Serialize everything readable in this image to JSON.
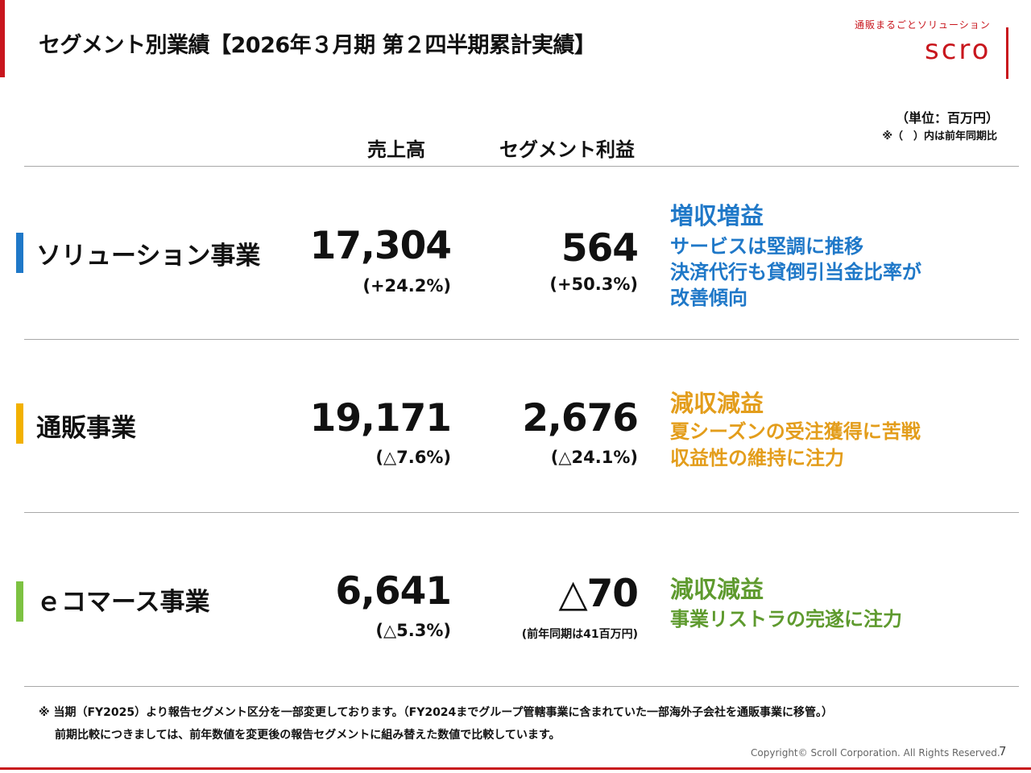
{
  "header": {
    "title": "セグメント別業績【2026年３月期 第２四半期累計実績】",
    "brand_tagline": "通販まるごとソリューション",
    "brand_logo": "scro"
  },
  "unit": "（単位：百万円）",
  "note_prev": "※（　）内は前年同期比",
  "columns": {
    "sales": "売上高",
    "profit": "セグメント利益"
  },
  "segments": [
    {
      "name": "ソリューション事業",
      "color": "#1f78c8",
      "sales": "17,304",
      "sales_change": "(+24.2%)",
      "profit": "564",
      "profit_change": "(+50.3%)",
      "eval_title": "増収増益",
      "eval_lines": [
        "サービスは堅調に推移",
        "決済代行も貸倒引当金比率が",
        "改善傾向"
      ]
    },
    {
      "name": "通販事業",
      "color": "#e8a010",
      "eval_color": "#e39d1b",
      "sales": "19,171",
      "sales_change": "(△7.6%)",
      "profit": "2,676",
      "profit_change": "(△24.1%)",
      "eval_title": "減収減益",
      "eval_lines": [
        "夏シーズンの受注獲得に苦戦",
        "収益性の維持に注力"
      ]
    },
    {
      "name": "ｅコマース事業",
      "color": "#7dc242",
      "eval_color": "#5e9a2e",
      "sales": "6,641",
      "sales_change": "(△5.3%)",
      "profit": "△70",
      "profit_note": "(前年同期は41百万円)",
      "eval_title": "減収減益",
      "eval_lines": [
        "事業リストラの完遂に注力"
      ]
    }
  ],
  "footnotes": [
    "※ 当期（FY2025）より報告セグメント区分を一部変更しております。（FY2024までグループ管轄事業に含まれていた一部海外子会社を通販事業に移管。）",
    "前期比較につきましては、前年数値を変更後の報告セグメントに組み替えた数値で比較しています。"
  ],
  "copyright": "Copyright© Scroll Corporation. All Rights Reserved.",
  "page_number": "7"
}
